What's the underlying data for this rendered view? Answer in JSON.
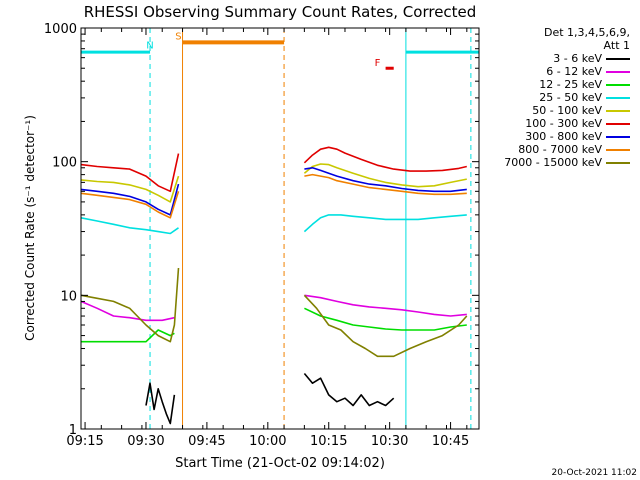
{
  "chart_data": {
    "type": "line",
    "title": "RHESSI Observing Summary Count Rates, Corrected",
    "xlabel": "Start Time (21-Oct-02 09:14:02)",
    "ylabel": "Corrected Count Rate (s⁻¹ detector⁻¹)",
    "y_scale": "log",
    "ylim": [
      1,
      1000
    ],
    "xlim": [
      "09:14",
      "10:52"
    ],
    "x_ticks": [
      "09:15",
      "09:30",
      "09:45",
      "10:00",
      "10:15",
      "10:30",
      "10:45"
    ],
    "y_ticks": [
      "1",
      "10",
      "100",
      "1000"
    ],
    "grid": false,
    "legend_placement": "right",
    "legend_header": [
      "Det 1,3,4,5,6,9,",
      "Att 1"
    ],
    "series": [
      {
        "name": "3 - 6 keV",
        "color": "#000000",
        "segments": [
          {
            "x": [
              "09:30",
              "09:31",
              "09:32",
              "09:33",
              "09:34",
              "09:35",
              "09:36",
              "09:37"
            ],
            "y": [
              1.5,
              2.2,
              1.4,
              2.0,
              1.6,
              1.3,
              1.1,
              1.8
            ]
          },
          {
            "x": [
              "10:09",
              "10:11",
              "10:13",
              "10:15",
              "10:17",
              "10:19",
              "10:21",
              "10:23",
              "10:25",
              "10:27",
              "10:29",
              "10:31"
            ],
            "y": [
              2.6,
              2.2,
              2.4,
              1.8,
              1.6,
              1.7,
              1.5,
              1.8,
              1.5,
              1.6,
              1.5,
              1.7
            ]
          }
        ]
      },
      {
        "name": "6 - 12 keV",
        "color": "#e000e0",
        "segments": [
          {
            "x": [
              "09:14",
              "09:18",
              "09:22",
              "09:26",
              "09:30",
              "09:34",
              "09:37"
            ],
            "y": [
              9,
              8,
              7,
              6.8,
              6.5,
              6.5,
              6.8
            ]
          },
          {
            "x": [
              "10:09",
              "10:13",
              "10:17",
              "10:21",
              "10:25",
              "10:29",
              "10:33",
              "10:37",
              "10:41",
              "10:45",
              "10:49"
            ],
            "y": [
              10,
              9.6,
              9,
              8.5,
              8.2,
              8,
              7.8,
              7.5,
              7.2,
              7.0,
              7.2
            ]
          }
        ]
      },
      {
        "name": "12 - 25 keV",
        "color": "#00dd00",
        "segments": [
          {
            "x": [
              "09:14",
              "09:18",
              "09:22",
              "09:26",
              "09:30",
              "09:33",
              "09:36",
              "09:37"
            ],
            "y": [
              4.5,
              4.5,
              4.5,
              4.5,
              4.5,
              5.5,
              5.0,
              5.2
            ]
          },
          {
            "x": [
              "10:09",
              "10:13",
              "10:17",
              "10:21",
              "10:25",
              "10:29",
              "10:33",
              "10:37",
              "10:41",
              "10:45",
              "10:49"
            ],
            "y": [
              8,
              7,
              6.5,
              6,
              5.8,
              5.6,
              5.5,
              5.5,
              5.5,
              5.8,
              6
            ]
          }
        ]
      },
      {
        "name": "25 - 50 keV",
        "color": "#00e0e0",
        "segments": [
          {
            "x": [
              "09:14",
              "09:18",
              "09:22",
              "09:26",
              "09:30",
              "09:33",
              "09:36",
              "09:38"
            ],
            "y": [
              38,
              36,
              34,
              32,
              31,
              30,
              29,
              32
            ]
          },
          {
            "x": [
              "10:09",
              "10:11",
              "10:13",
              "10:15",
              "10:18",
              "10:21",
              "10:25",
              "10:29",
              "10:33",
              "10:37",
              "10:41",
              "10:45",
              "10:49"
            ],
            "y": [
              30,
              34,
              38,
              40,
              40,
              39,
              38,
              37,
              37,
              37,
              38,
              39,
              40
            ]
          }
        ]
      },
      {
        "name": "50 - 100 keV",
        "color": "#c8c800",
        "segments": [
          {
            "x": [
              "09:14",
              "09:18",
              "09:22",
              "09:26",
              "09:30",
              "09:33",
              "09:36",
              "09:38"
            ],
            "y": [
              73,
              71,
              70,
              67,
              62,
              56,
              50,
              78
            ]
          },
          {
            "x": [
              "10:09",
              "10:11",
              "10:13",
              "10:15",
              "10:17",
              "10:21",
              "10:25",
              "10:29",
              "10:33",
              "10:37",
              "10:41",
              "10:45",
              "10:49"
            ],
            "y": [
              82,
              92,
              96,
              95,
              90,
              82,
              75,
              70,
              67,
              65,
              66,
              70,
              74
            ]
          }
        ]
      },
      {
        "name": "100 - 300 keV",
        "color": "#e00000",
        "segments": [
          {
            "x": [
              "09:14",
              "09:18",
              "09:22",
              "09:26",
              "09:30",
              "09:33",
              "09:36",
              "09:38"
            ],
            "y": [
              95,
              92,
              90,
              88,
              78,
              66,
              60,
              115
            ]
          },
          {
            "x": [
              "10:09",
              "10:11",
              "10:13",
              "10:15",
              "10:17",
              "10:19",
              "10:23",
              "10:27",
              "10:31",
              "10:35",
              "10:39",
              "10:43",
              "10:47",
              "10:49"
            ],
            "y": [
              98,
              112,
              124,
              128,
              124,
              116,
              104,
              94,
              88,
              85,
              85,
              86,
              89,
              92
            ]
          }
        ]
      },
      {
        "name": "300 - 800 keV",
        "color": "#0000e0",
        "segments": [
          {
            "x": [
              "09:14",
              "09:18",
              "09:22",
              "09:26",
              "09:30",
              "09:33",
              "09:36",
              "09:38"
            ],
            "y": [
              62,
              60,
              58,
              55,
              50,
              44,
              40,
              68
            ]
          },
          {
            "x": [
              "10:09",
              "10:11",
              "10:13",
              "10:15",
              "10:17",
              "10:21",
              "10:25",
              "10:29",
              "10:33",
              "10:37",
              "10:41",
              "10:45",
              "10:49"
            ],
            "y": [
              88,
              90,
              86,
              82,
              78,
              72,
              68,
              66,
              63,
              61,
              60,
              60,
              62
            ]
          }
        ]
      },
      {
        "name": "800 - 7000 keV",
        "color": "#f08000",
        "segments": [
          {
            "x": [
              "09:14",
              "09:18",
              "09:22",
              "09:26",
              "09:30",
              "09:33",
              "09:36",
              "09:38"
            ],
            "y": [
              58,
              56,
              54,
              52,
              48,
              42,
              38,
              60
            ]
          },
          {
            "x": [
              "10:09",
              "10:11",
              "10:13",
              "10:15",
              "10:17",
              "10:21",
              "10:25",
              "10:29",
              "10:33",
              "10:37",
              "10:41",
              "10:45",
              "10:49"
            ],
            "y": [
              78,
              80,
              78,
              76,
              72,
              68,
              64,
              62,
              60,
              58,
              57,
              57,
              58
            ]
          }
        ]
      },
      {
        "name": "7000 - 15000 keV",
        "color": "#808000",
        "segments": [
          {
            "x": [
              "09:14",
              "09:18",
              "09:22",
              "09:26",
              "09:30",
              "09:33",
              "09:36",
              "09:37",
              "09:38"
            ],
            "y": [
              10,
              9.5,
              9,
              8,
              6,
              5,
              4.5,
              6,
              16
            ]
          },
          {
            "x": [
              "10:09",
              "10:12",
              "10:15",
              "10:18",
              "10:21",
              "10:24",
              "10:27",
              "10:31",
              "10:35",
              "10:39",
              "10:43",
              "10:47",
              "10:49"
            ],
            "y": [
              10,
              8,
              6,
              5.5,
              4.5,
              4,
              3.5,
              3.5,
              4,
              4.5,
              5,
              6,
              7
            ]
          }
        ]
      }
    ],
    "annotations": [
      {
        "text": "N",
        "color": "#00e0e0",
        "x": "09:31",
        "y": 700
      },
      {
        "text": "S",
        "color": "#f08000",
        "x": "09:38",
        "y": 820
      },
      {
        "text": "F",
        "color": "#e00000",
        "x": "10:27",
        "y": 520
      }
    ],
    "state_bars": [
      {
        "label": "N",
        "color": "#00e0e0",
        "x_ranges": [
          [
            "09:14",
            "09:31"
          ],
          [
            "10:34",
            "10:52"
          ]
        ],
        "y": 660
      },
      {
        "label": "S",
        "color": "#f08000",
        "x_ranges": [
          [
            "09:39",
            "10:04"
          ]
        ],
        "y": 780
      },
      {
        "label": "F",
        "color": "#e00000",
        "x_ranges": [
          [
            "10:29",
            "10:31"
          ]
        ],
        "y": 500
      }
    ],
    "event_lines": [
      {
        "x": "09:39",
        "color": "#f08000",
        "style": "solid"
      },
      {
        "x": "10:04",
        "color": "#f08000",
        "style": "dashed"
      },
      {
        "x": "09:31",
        "color": "#00e0e0",
        "style": "dashed"
      },
      {
        "x": "10:34",
        "color": "#00e0e0",
        "style": "solid"
      },
      {
        "x": "10:50",
        "color": "#00e0e0",
        "style": "dashed"
      }
    ]
  },
  "timestamp": "20-Oct-2021 11:02"
}
